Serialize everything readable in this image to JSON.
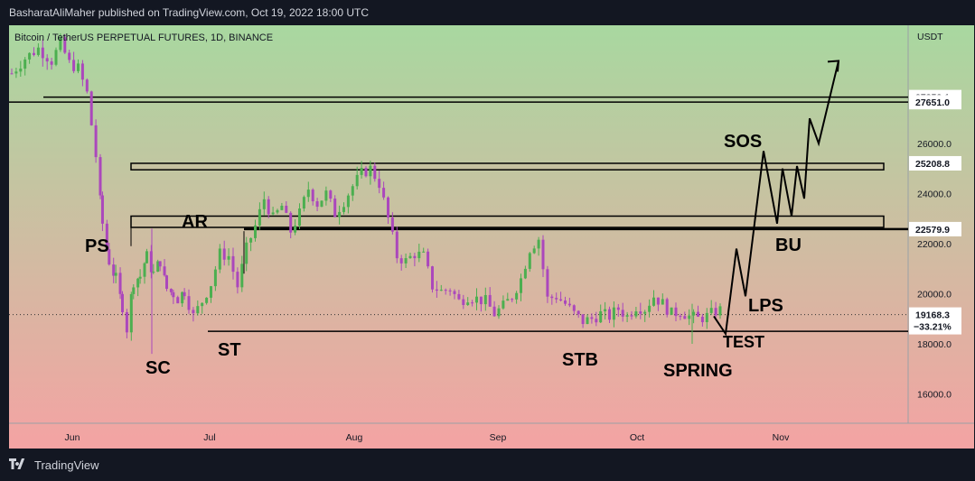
{
  "header": {
    "publish_line": "BasharatAliMaher published on TradingView.com, Oct 19, 2022 18:00 UTC"
  },
  "footer": {
    "brand": "TradingView",
    "logo_icon": "tradingview-logo-icon"
  },
  "chart_data": {
    "type": "candlestick",
    "symbol_line": "Bitcoin / TetherUS PERPETUAL FUTURES, 1D, BINANCE",
    "currency": "USDT",
    "ylim": [
      14300,
      30000
    ],
    "y_ticks": [
      "16000.0",
      "18000.0",
      "20000.0",
      "22000.0",
      "24000.0",
      "26000.0"
    ],
    "x_ticks": [
      "Jun",
      "Jul",
      "Aug",
      "Sep",
      "Oct",
      "Nov"
    ],
    "price_tags": [
      {
        "text": "27852.1",
        "value": 27852.1
      },
      {
        "text": "27651.0",
        "value": 27651.0
      },
      {
        "text": "25208.8",
        "value": 25208.8
      },
      {
        "text": "22579.9",
        "value": 22579.9
      }
    ],
    "last_price": {
      "value": 19168.3,
      "text": "19168.3",
      "change": "−33.21%"
    },
    "horizontal_lines": [
      27852.1,
      27651.0,
      22579.9,
      18500
    ],
    "zones": [
      {
        "from": 24950,
        "to": 25208.8
      },
      {
        "from": 22650,
        "to": 23100
      }
    ],
    "wyckoff_labels": [
      "PS",
      "SC",
      "AR",
      "ST",
      "STB",
      "SPRING",
      "TEST",
      "LPS",
      "SOS",
      "BU"
    ],
    "candles_summary": {
      "start_close": 29600,
      "capitulation_low": 17600,
      "august_high": 25200,
      "september_spike_high": 22800,
      "last_close": 19168.3
    },
    "projection": [
      19100,
      18400,
      21800,
      19900,
      25700,
      22800,
      25000,
      23100,
      25100,
      23800,
      27000,
      26000,
      29300
    ],
    "colors": {
      "up": "#4caf50",
      "down": "#ab47bc",
      "bg_top": "#a8d8a0",
      "bg_bottom": "#f4a3a3",
      "zone_fill": "#cbbda0",
      "tag_bg": "#ffffff",
      "tag_text": "#000000"
    }
  }
}
